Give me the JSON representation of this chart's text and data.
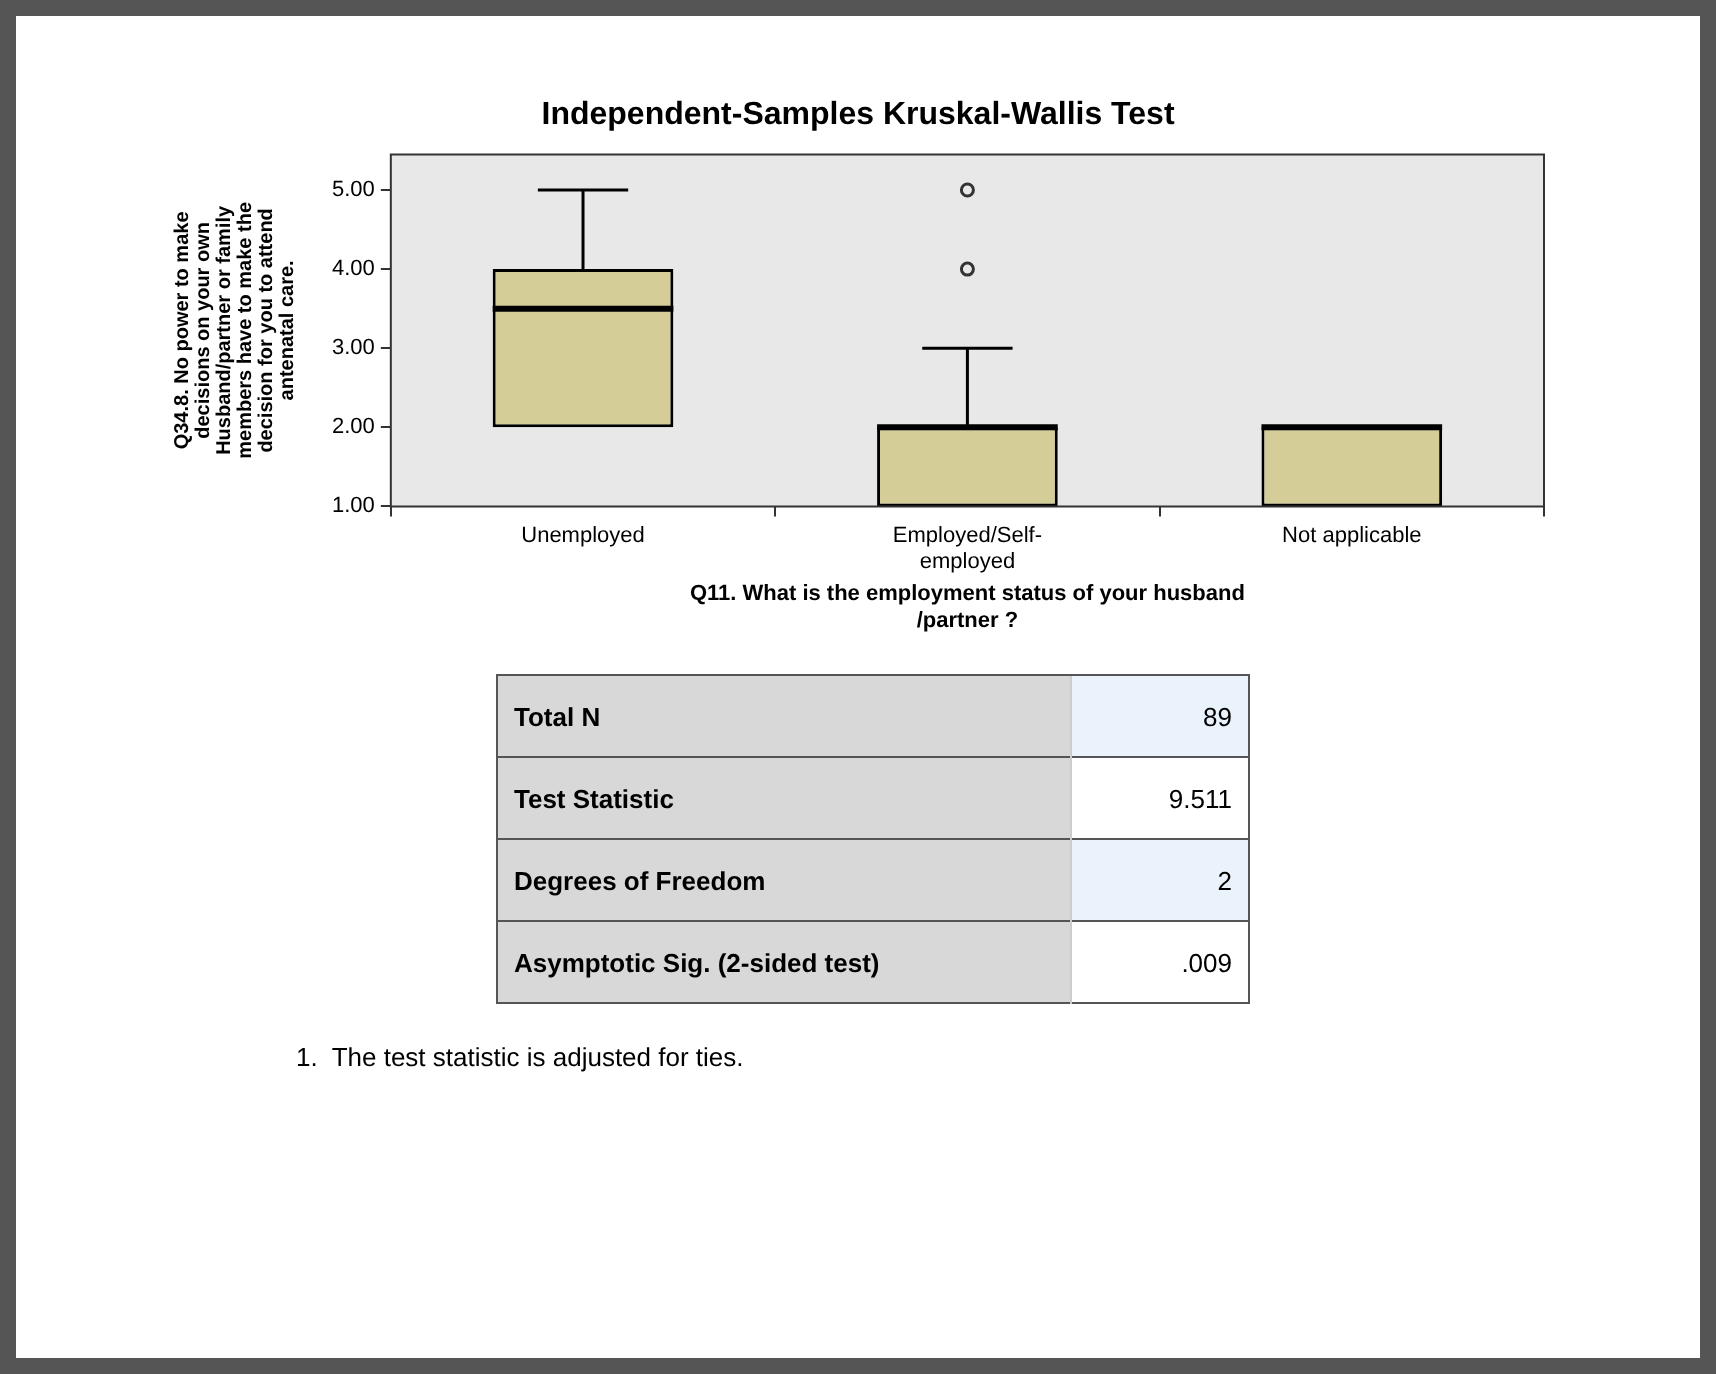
{
  "chart_data": [
    {
      "type": "box",
      "title": "Independent-Samples Kruskal-Wallis Test",
      "xlabel": "Q11. What is the employment status of your husband /partner ?",
      "ylabel": "Q34.8. No power to make decisions on your own Husband/partner or family members have to make the decision for you to attend antenatal care.",
      "categories": [
        "Unemployed",
        "Employed/Self-employed",
        "Not applicable"
      ],
      "color": "#d4cd98",
      "marker": "circle",
      "boxes": [
        {
          "low": 2,
          "q1": 2,
          "median": 3.5,
          "q3": 4,
          "high": 5
        },
        {
          "low": 1,
          "q1": 1,
          "median": 2,
          "q3": 2,
          "high": 3,
          "outliers": [
            4,
            5
          ]
        },
        {
          "low": 1,
          "q1": 1,
          "median": 2,
          "q3": 2,
          "high": 2
        }
      ],
      "ylim": [
        1,
        5.45
      ],
      "yticks": [
        {
          "value": 1,
          "label": "1.00"
        },
        {
          "value": 2,
          "label": "2.00"
        },
        {
          "value": 3,
          "label": "3.00"
        },
        {
          "value": 4,
          "label": "4.00"
        },
        {
          "value": 5,
          "label": "5.00"
        }
      ]
    },
    {
      "type": "other",
      "categories": [
        "Total N",
        "Test Statistic",
        "Degrees of Freedom",
        "Asymptotic Sig. (2-sided test)"
      ],
      "value_labels": [
        "89",
        "9.511",
        "2",
        ".009"
      ],
      "annotations": [
        "1.  The test statistic is adjusted for ties."
      ]
    }
  ]
}
